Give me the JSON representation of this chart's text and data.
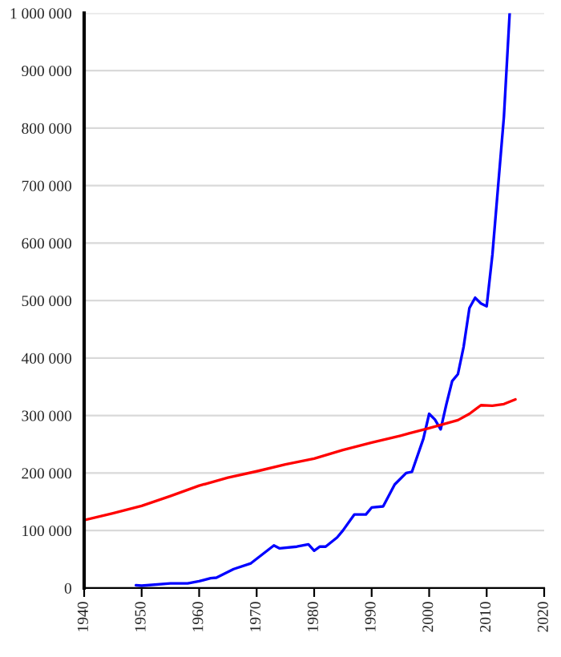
{
  "chart_data": {
    "type": "line",
    "xlim": [
      1940,
      2020
    ],
    "xticks": [
      1940,
      1950,
      1960,
      1970,
      1980,
      1990,
      2000,
      2010,
      2020
    ],
    "ylim": [
      0,
      1000000
    ],
    "yticks": [
      0,
      {
        "value": 100000,
        "label": "100 000"
      },
      {
        "value": 200000,
        "label": "200 000"
      },
      {
        "value": 300000,
        "label": "300 000"
      },
      {
        "value": 400000,
        "label": "400 000"
      },
      {
        "value": 500000,
        "label": "500 000"
      },
      {
        "value": 600000,
        "label": "600 000"
      },
      {
        "value": 700000,
        "label": "700 000"
      },
      {
        "value": 800000,
        "label": "800 000"
      },
      {
        "value": 900000,
        "label": "900 000"
      },
      {
        "value": 1000000,
        "label": "1 000 000"
      }
    ],
    "grid": "y",
    "marker": "none",
    "line_style": "solid",
    "series": [
      {
        "color": "#0000ff",
        "x": [
          1949,
          1950,
          1955,
          1958,
          1960,
          1962,
          1963,
          1966,
          1969,
          1973,
          1974,
          1977,
          1979,
          1980,
          1981,
          1982,
          1984,
          1985,
          1987,
          1989,
          1990,
          1992,
          1994,
          1996,
          1997,
          1999,
          2000,
          2001,
          2002,
          2003,
          2004,
          2005,
          2006,
          2007,
          2008,
          2009,
          2010,
          2011,
          2012,
          2013,
          2014
        ],
        "values": [
          5000,
          4000,
          8000,
          8000,
          12000,
          17000,
          18000,
          33000,
          43000,
          74000,
          69000,
          72000,
          76000,
          65000,
          72000,
          72000,
          88000,
          100000,
          128000,
          128000,
          140000,
          142000,
          180000,
          200000,
          202000,
          260000,
          303000,
          293000,
          276000,
          320000,
          360000,
          372000,
          420000,
          487000,
          505000,
          495000,
          490000,
          580000,
          700000,
          820000,
          1000000
        ]
      },
      {
        "color": "#ff0000",
        "x": [
          1940,
          1945,
          1950,
          1955,
          1960,
          1965,
          1970,
          1975,
          1980,
          1985,
          1990,
          1995,
          2000,
          2005,
          2007,
          2009,
          2011,
          2013,
          2015
        ],
        "values": [
          118000,
          130000,
          143000,
          160000,
          178000,
          192000,
          203000,
          215000,
          225000,
          240000,
          253000,
          265000,
          278000,
          292000,
          303000,
          318000,
          317000,
          320000,
          328000
        ]
      }
    ]
  }
}
